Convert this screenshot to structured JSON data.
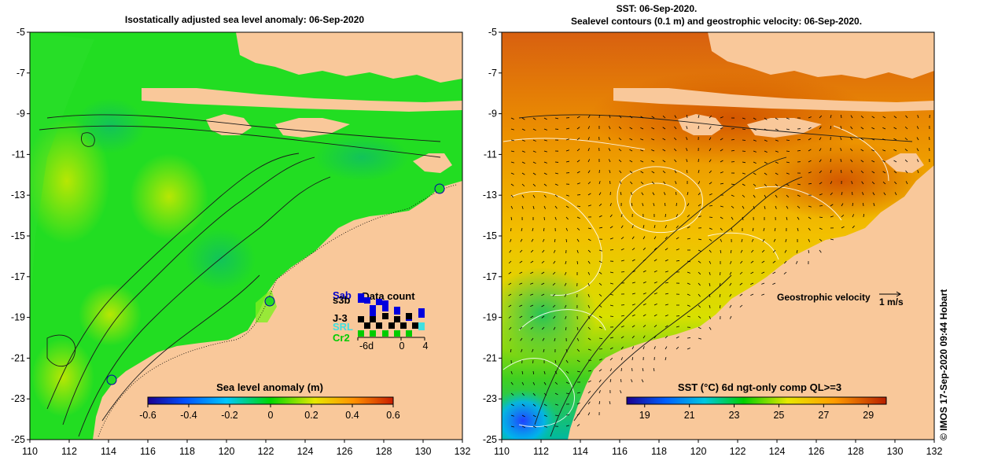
{
  "left_panel": {
    "title": "Isostatically adjusted sea level anomaly: 06-Sep-2020",
    "y_ticks": [
      "-5",
      "-7",
      "-9",
      "-11",
      "-13",
      "-15",
      "-17",
      "-19",
      "-21",
      "-23",
      "-25"
    ],
    "x_ticks": [
      "110",
      "112",
      "114",
      "116",
      "118",
      "120",
      "122",
      "124",
      "126",
      "128",
      "130",
      "132"
    ],
    "colorbar": {
      "label": "Sea level anomaly (m)",
      "ticks": [
        "-0.6",
        "-0.4",
        "-0.2",
        "0",
        "0.2",
        "0.4",
        "0.6"
      ],
      "range": [
        -0.6,
        0.6
      ]
    },
    "data_count": {
      "title": "Data count",
      "satellites": [
        {
          "name": "Sab",
          "color": "#0000cc"
        },
        {
          "name": "s3b",
          "color": "#000000"
        },
        {
          "name": "J-3",
          "color": "#000000"
        },
        {
          "name": "SRL",
          "color": "#40e0e0"
        },
        {
          "name": "Cr2",
          "color": "#00cc00"
        }
      ],
      "x_ticks": [
        "-6d",
        "0",
        "4"
      ]
    },
    "tide_gauges": 3
  },
  "right_panel": {
    "title_line1": "SST: 06-Sep-2020.",
    "title_line2": "Sealevel contours (0.1 m) and geostrophic velocity: 06-Sep-2020.",
    "y_ticks": [
      "-5",
      "-7",
      "-9",
      "-11",
      "-13",
      "-15",
      "-17",
      "-19",
      "-21",
      "-23",
      "-25"
    ],
    "x_ticks": [
      "110",
      "112",
      "114",
      "116",
      "118",
      "120",
      "122",
      "124",
      "126",
      "128",
      "130",
      "132"
    ],
    "velocity_legend": {
      "label": "Geostrophic velocity",
      "scale": "1 m/s"
    },
    "colorbar": {
      "label": "SST (°C) 6d ngt-only comp QL>=3",
      "ticks": [
        "19",
        "21",
        "23",
        "25",
        "27",
        "29"
      ],
      "range": [
        18.2,
        29.8
      ]
    }
  },
  "credit": "© IMOS 17-Sep-2020 09:44 Hobart",
  "colors": {
    "land": "#f9c89a",
    "ocean_sla": "#22dd22",
    "ocean_sst": "#f0a000"
  }
}
